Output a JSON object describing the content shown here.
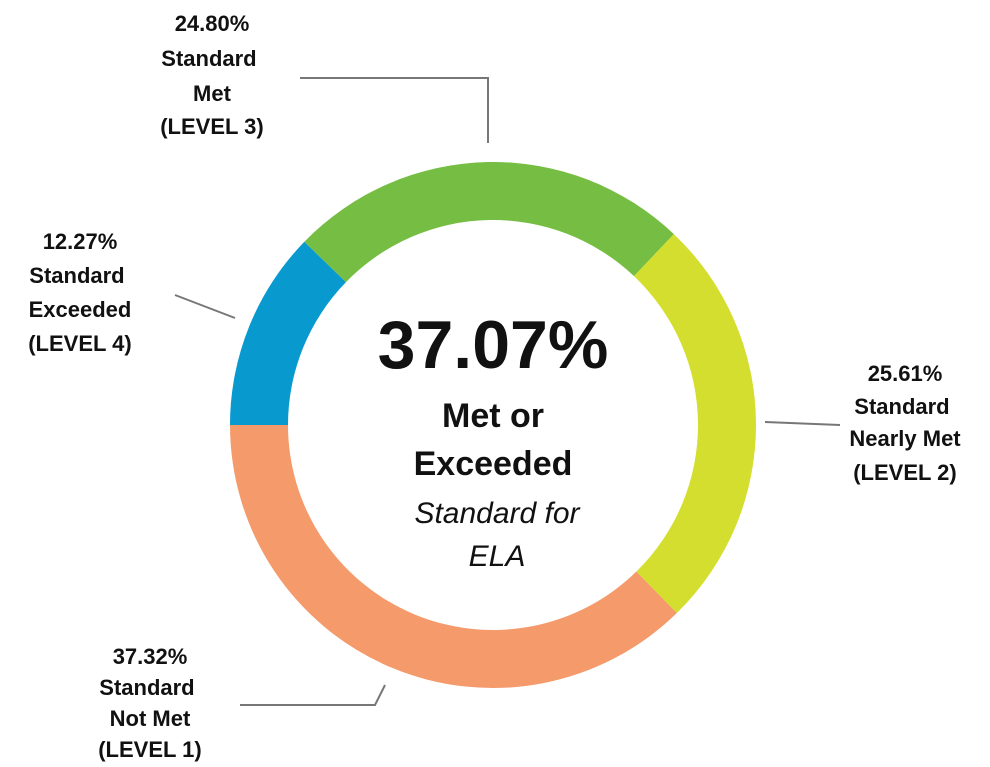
{
  "chart_data": {
    "type": "donut",
    "categories": [
      "Standard Exceeded",
      "Standard Met",
      "Standard Nearly Met",
      "Standard Not Met"
    ],
    "levels": [
      "(LEVEL 4)",
      "(LEVEL 3)",
      "(LEVEL 2)",
      "(LEVEL 1)"
    ],
    "values": [
      12.27,
      24.8,
      25.61,
      37.32
    ],
    "value_labels": [
      "12.27%",
      "24.80%",
      "25.61%",
      "37.32%"
    ],
    "colors": [
      "#0899cf",
      "#76be43",
      "#d3de2e",
      "#f49a6b"
    ],
    "center_value": "37.07%",
    "center_title": [
      "Met or",
      "Exceeded"
    ],
    "center_subtitle": [
      "Standard for",
      "ELA"
    ]
  }
}
